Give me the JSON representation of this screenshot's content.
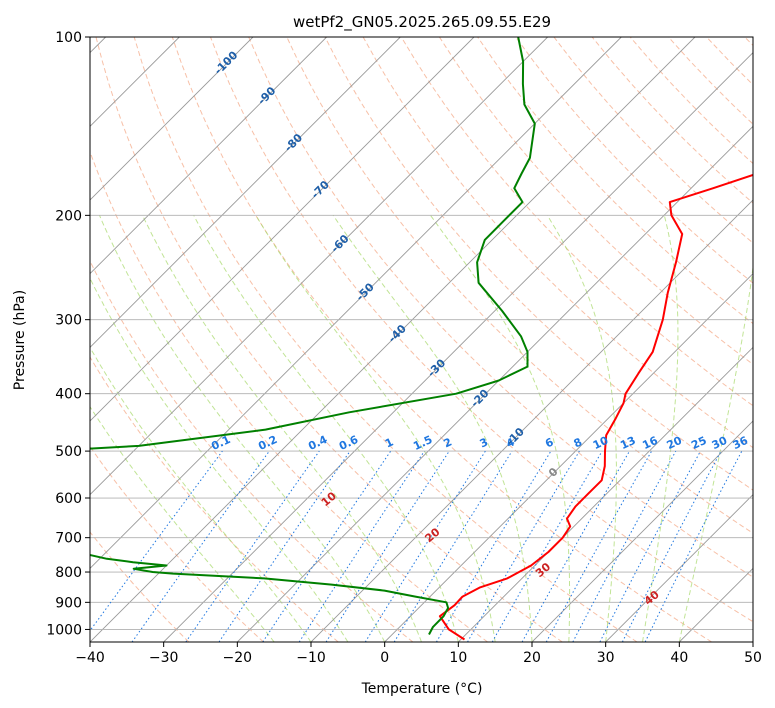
{
  "chart_data": {
    "type": "skew-t log-p",
    "title": "wetPf2_GN05.2025.265.09.55.E29",
    "xlabel": "Temperature (°C)",
    "ylabel": "Pressure (hPa)",
    "xlim": [
      -40,
      50
    ],
    "ylim": [
      1050,
      100
    ],
    "x_ticks": [
      "−40",
      "−30",
      "−20",
      "−10",
      "0",
      "10",
      "20",
      "30",
      "40",
      "50"
    ],
    "y_ticks": [
      "100",
      "200",
      "300",
      "400",
      "500",
      "600",
      "700",
      "800",
      "900",
      "1000"
    ],
    "y_scale": "log",
    "grid": true,
    "colors": {
      "temperature": "#ff0000",
      "dewpoint": "#008000",
      "dry_adiabat": "#f4a582",
      "moist_adiabat": "#a6d96a",
      "mixing_ratio": "#1f77e0",
      "skewed_isotherm": "#888888",
      "isotherm_label": "#1f5fa8",
      "adiabat_label": "#cc2222"
    },
    "isotherm_labels": [
      "-100",
      "-90",
      "-80",
      "-70",
      "-60",
      "-50",
      "-40",
      "-30",
      "-20",
      "-10",
      "0"
    ],
    "mixing_ratio_labels": [
      "0.1",
      "0.2",
      "0.4",
      "0.6",
      "1",
      "1.5",
      "2",
      "3",
      "4",
      "6",
      "8",
      "10",
      "13",
      "16",
      "20",
      "25",
      "30",
      "36"
    ],
    "dry_adiabat_labels": [
      "10",
      "20",
      "30",
      "40"
    ],
    "series": [
      {
        "name": "",
        "role": "temperature",
        "points": [
          [
            1040,
            10.5
          ],
          [
            1000,
            7
          ],
          [
            950,
            4
          ],
          [
            910,
            4.5
          ],
          [
            880,
            4.4
          ],
          [
            850,
            5.5
          ],
          [
            820,
            8
          ],
          [
            780,
            9.5
          ],
          [
            740,
            10
          ],
          [
            700,
            10
          ],
          [
            670,
            9.5
          ],
          [
            650,
            8
          ],
          [
            620,
            7.5
          ],
          [
            590,
            7.5
          ],
          [
            560,
            7.5
          ],
          [
            530,
            6
          ],
          [
            500,
            4
          ],
          [
            470,
            2
          ],
          [
            440,
            1
          ],
          [
            415,
            0
          ],
          [
            400,
            -1
          ],
          [
            370,
            -2
          ],
          [
            340,
            -3
          ],
          [
            300,
            -6
          ],
          [
            270,
            -9
          ],
          [
            240,
            -12
          ],
          [
            215,
            -15
          ],
          [
            200,
            -19
          ],
          [
            190,
            -21
          ],
          [
            180,
            -17
          ],
          [
            170,
            -13
          ],
          [
            160,
            -13
          ],
          [
            150,
            -14
          ],
          [
            140,
            -15
          ],
          [
            130,
            -17
          ],
          [
            120,
            -19.5
          ],
          [
            110,
            -22
          ],
          [
            100,
            -25
          ]
        ]
      },
      {
        "name": "",
        "role": "dewpoint",
        "points": [
          [
            1020,
            5
          ],
          [
            990,
            4.5
          ],
          [
            950,
            4.5
          ],
          [
            920,
            4
          ],
          [
            900,
            3
          ],
          [
            880,
            -2
          ],
          [
            860,
            -7
          ],
          [
            840,
            -15
          ],
          [
            820,
            -25
          ],
          [
            805,
            -38
          ],
          [
            800,
            -41
          ],
          [
            790,
            -44
          ],
          [
            780,
            -40
          ],
          [
            770,
            -45
          ],
          [
            760,
            -49
          ],
          [
            740,
            -54
          ],
          [
            720,
            -57
          ],
          [
            700,
            -60
          ],
          [
            675,
            -68
          ],
          [
            620,
            -95
          ],
          [
            580,
            -110
          ],
          [
            545,
            -140
          ],
          [
            520,
            -95
          ],
          [
            490,
            -60
          ],
          [
            460,
            -45
          ],
          [
            430,
            -36
          ],
          [
            400,
            -24
          ],
          [
            380,
            -20
          ],
          [
            360,
            -18
          ],
          [
            340,
            -20
          ],
          [
            320,
            -23
          ],
          [
            290,
            -29
          ],
          [
            260,
            -36
          ],
          [
            240,
            -39
          ],
          [
            220,
            -41
          ],
          [
            205,
            -41
          ],
          [
            190,
            -41
          ],
          [
            180,
            -44
          ],
          [
            170,
            -45
          ],
          [
            160,
            -46
          ],
          [
            140,
            -50
          ],
          [
            130,
            -54
          ],
          [
            120,
            -57
          ],
          [
            110,
            -60
          ],
          [
            100,
            -64
          ]
        ]
      }
    ]
  }
}
